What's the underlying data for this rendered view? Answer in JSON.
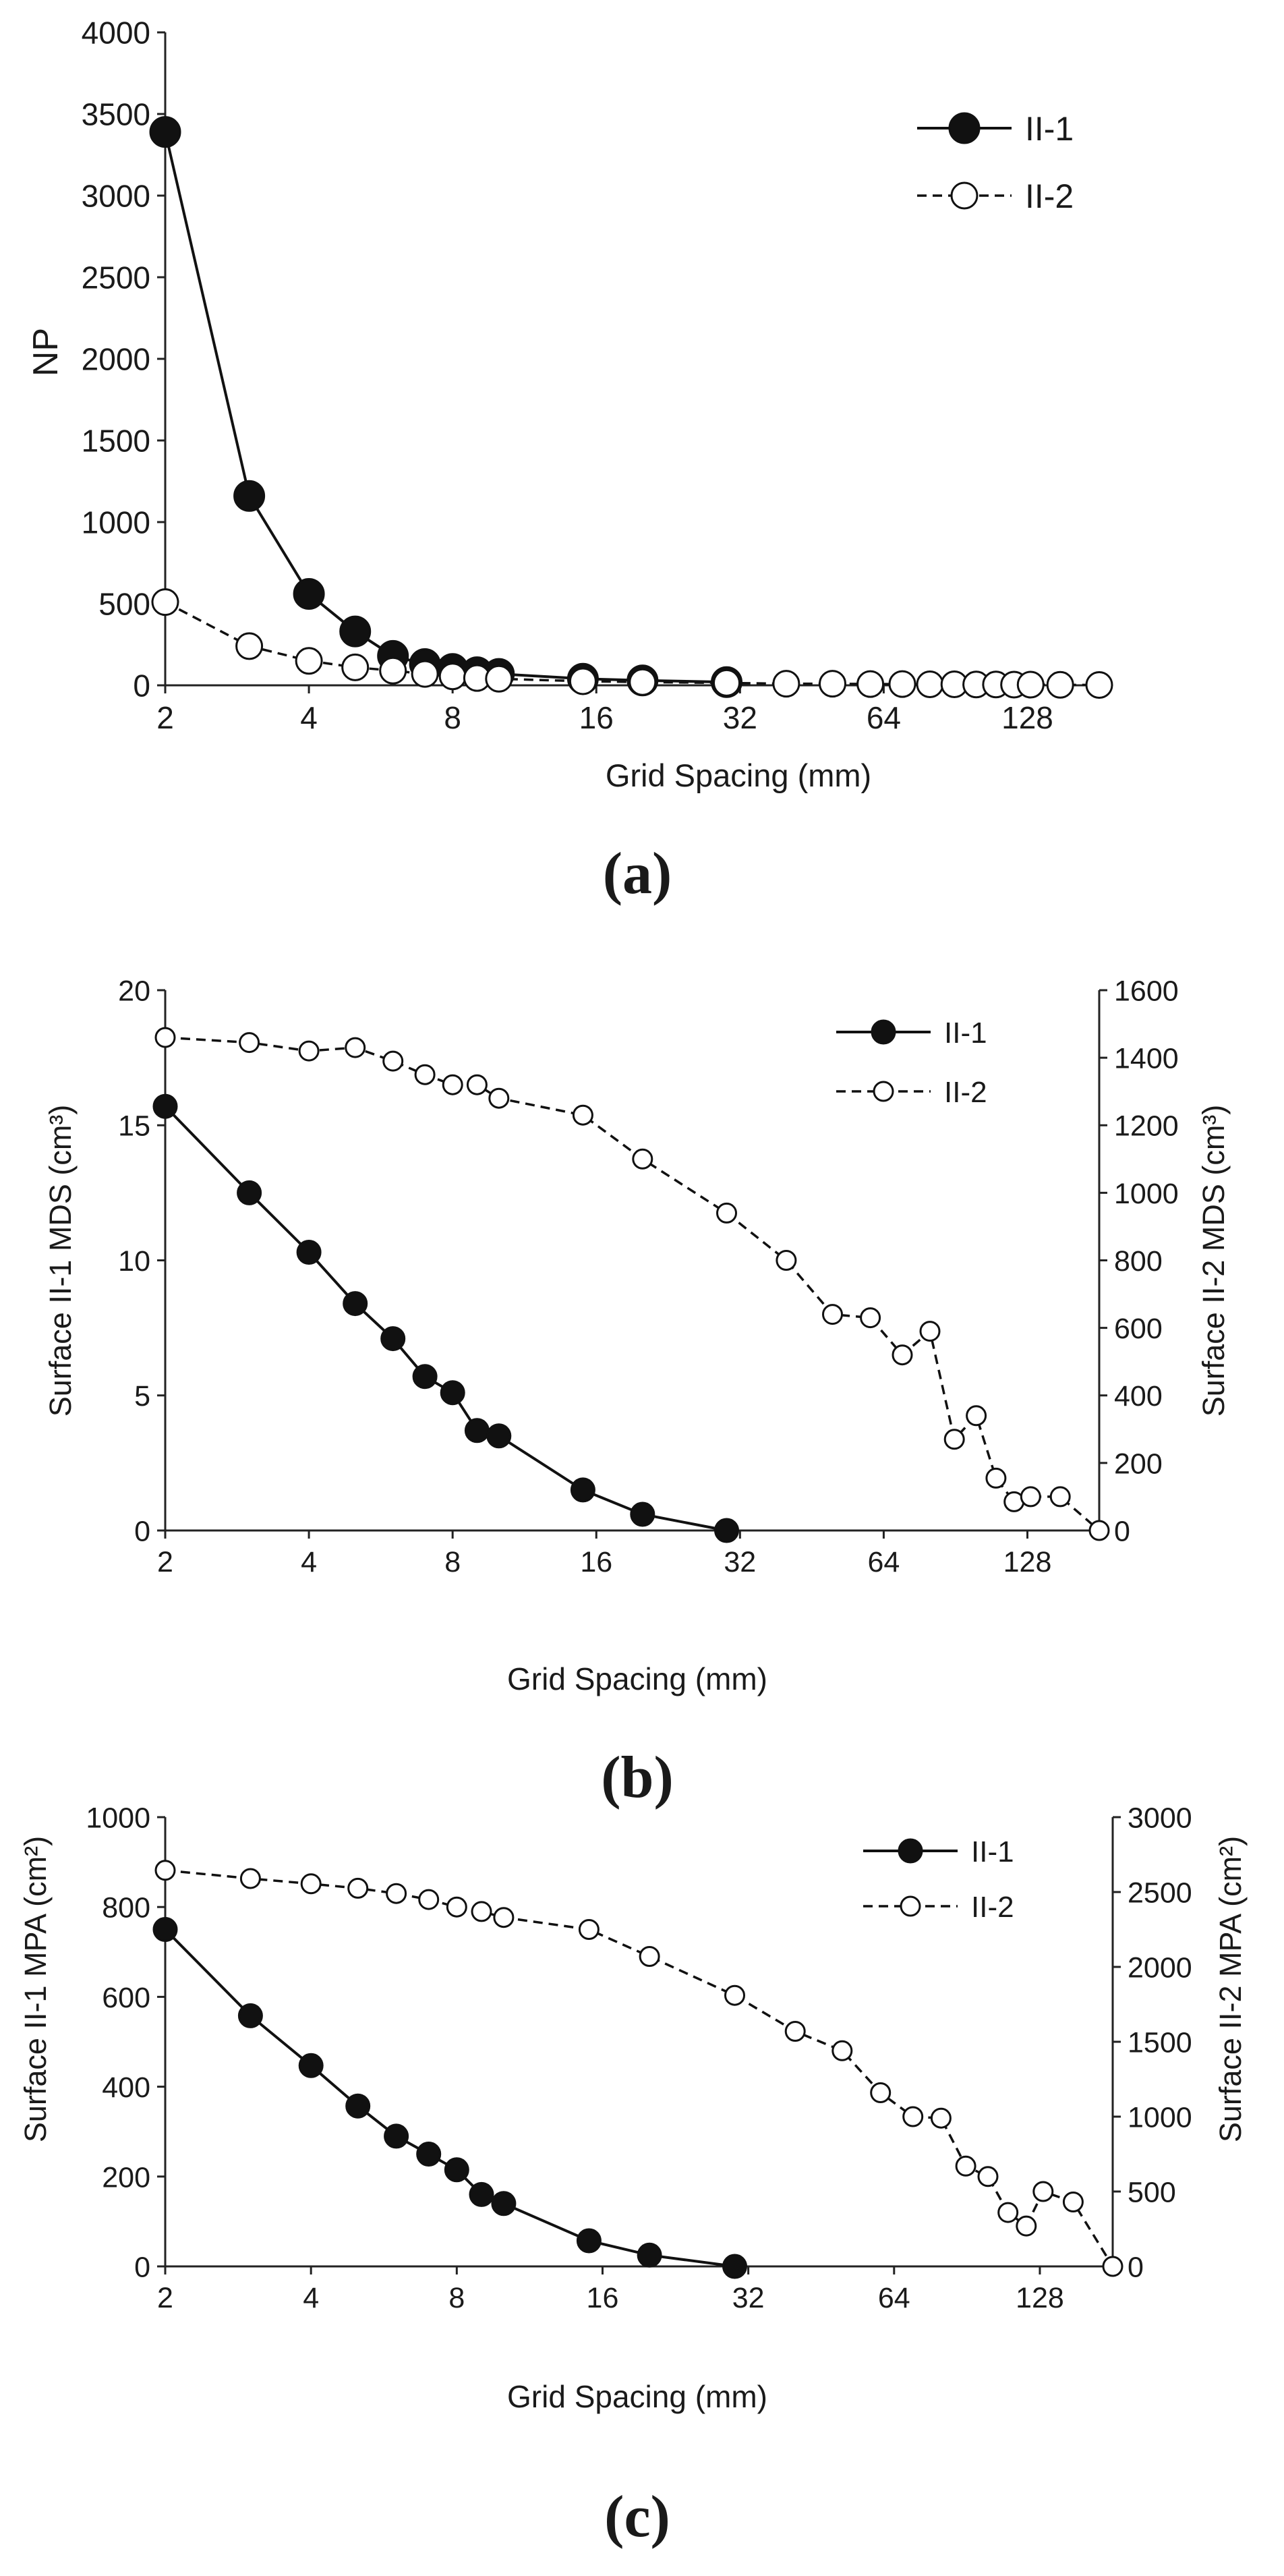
{
  "figure": {
    "panels": [
      "a",
      "b",
      "c"
    ]
  },
  "chart_data": [
    {
      "id": "a",
      "type": "line",
      "caption": "(a)",
      "title": "",
      "xlabel": "Grid Spacing (mm)",
      "ylabel": "NP",
      "xscale": "log2",
      "xlim": [
        2,
        181
      ],
      "ylim": [
        0,
        4000
      ],
      "xticks": [
        2,
        4,
        8,
        16,
        32,
        64,
        128
      ],
      "xtick_labels": [
        "2",
        "4",
        "8",
        "16",
        "32",
        "64",
        "128"
      ],
      "yticks": [
        0,
        500,
        1000,
        1500,
        2000,
        2500,
        3000,
        3500,
        4000
      ],
      "ytick_labels": [
        "0",
        "500",
        "1000",
        "1500",
        "2000",
        "2500",
        "3000",
        "3500",
        "4000"
      ],
      "legend": "top-right",
      "grid": false,
      "series": [
        {
          "name": "II-1",
          "style": "solid-filled",
          "x": [
            2,
            3,
            4,
            5,
            6,
            7,
            8,
            9,
            10,
            15,
            20,
            30
          ],
          "y": [
            3390,
            1160,
            560,
            330,
            180,
            130,
            100,
            80,
            70,
            40,
            30,
            20
          ]
        },
        {
          "name": "II-2",
          "style": "dashed-open",
          "x": [
            2,
            3,
            4,
            5,
            6,
            7,
            8,
            9,
            10,
            15,
            20,
            30,
            40,
            50,
            60,
            70,
            80,
            90,
            100,
            110,
            120,
            130,
            150,
            181
          ],
          "y": [
            510,
            240,
            150,
            110,
            90,
            70,
            55,
            45,
            40,
            25,
            20,
            15,
            10,
            10,
            8,
            8,
            6,
            6,
            5,
            5,
            4,
            4,
            3,
            2
          ]
        }
      ]
    },
    {
      "id": "b",
      "type": "line",
      "caption": "(b)",
      "title": "",
      "xlabel": "Grid Spacing (mm)",
      "ylabel": "Surface II-1 MDS (cm³)",
      "ylabel2": "Surface II-2 MDS (cm³)",
      "xscale": "log2",
      "xlim": [
        2,
        181
      ],
      "ylim": [
        0,
        20
      ],
      "ylim2": [
        0,
        1600
      ],
      "xticks": [
        2,
        4,
        8,
        16,
        32,
        64,
        128
      ],
      "xtick_labels": [
        "2",
        "4",
        "8",
        "16",
        "32",
        "64",
        "128"
      ],
      "yticks": [
        0,
        5,
        10,
        15,
        20
      ],
      "ytick_labels": [
        "0",
        "5",
        "10",
        "15",
        "20"
      ],
      "yticks2": [
        0,
        200,
        400,
        600,
        800,
        1000,
        1200,
        1400,
        1600
      ],
      "ytick_labels2": [
        "0",
        "200",
        "400",
        "600",
        "800",
        "1000",
        "1200",
        "1400",
        "1600"
      ],
      "legend": "top-right",
      "grid": false,
      "series": [
        {
          "name": "II-1",
          "axis": "left",
          "style": "solid-filled",
          "x": [
            2,
            3,
            4,
            5,
            6,
            7,
            8,
            9,
            10,
            15,
            20,
            30
          ],
          "y": [
            15.7,
            12.5,
            10.3,
            8.4,
            7.1,
            5.7,
            5.1,
            3.7,
            3.5,
            1.5,
            0.6,
            0.0
          ]
        },
        {
          "name": "II-2",
          "axis": "right",
          "style": "dashed-open",
          "x": [
            2,
            3,
            4,
            5,
            6,
            7,
            8,
            9,
            10,
            15,
            20,
            30,
            40,
            50,
            60,
            70,
            80,
            90,
            100,
            110,
            120,
            130,
            150,
            181
          ],
          "y": [
            1460,
            1445,
            1420,
            1430,
            1390,
            1350,
            1320,
            1320,
            1280,
            1230,
            1100,
            940,
            800,
            640,
            630,
            520,
            590,
            270,
            340,
            155,
            85,
            100,
            100,
            0
          ]
        }
      ]
    },
    {
      "id": "c",
      "type": "line",
      "caption": "(c)",
      "title": "",
      "xlabel": "Grid Spacing (mm)",
      "ylabel": "Surface II-1 MPA (cm²)",
      "ylabel2": "Surface II-2 MPA (cm²)",
      "xscale": "log2",
      "xlim": [
        2,
        181
      ],
      "ylim": [
        0,
        1000
      ],
      "ylim2": [
        0,
        3000
      ],
      "xticks": [
        2,
        4,
        8,
        16,
        32,
        64,
        128
      ],
      "xtick_labels": [
        "2",
        "4",
        "8",
        "16",
        "32",
        "64",
        "128"
      ],
      "yticks": [
        0,
        200,
        400,
        600,
        800,
        1000
      ],
      "ytick_labels": [
        "0",
        "200",
        "400",
        "600",
        "800",
        "1000"
      ],
      "yticks2": [
        0,
        500,
        1000,
        1500,
        2000,
        2500,
        3000
      ],
      "ytick_labels2": [
        "0",
        "500",
        "1000",
        "1500",
        "2000",
        "2500",
        "3000"
      ],
      "legend": "top-right",
      "grid": false,
      "series": [
        {
          "name": "II-1",
          "axis": "left",
          "style": "solid-filled",
          "x": [
            2,
            3,
            4,
            5,
            6,
            7,
            8,
            9,
            10,
            15,
            20,
            30
          ],
          "y": [
            750,
            558,
            447,
            357,
            290,
            250,
            215,
            160,
            140,
            57,
            25,
            0
          ]
        },
        {
          "name": "II-2",
          "axis": "right",
          "style": "dashed-open",
          "x": [
            2,
            3,
            4,
            5,
            6,
            7,
            8,
            9,
            10,
            15,
            20,
            30,
            40,
            50,
            60,
            70,
            80,
            90,
            100,
            110,
            120,
            130,
            150,
            181
          ],
          "y": [
            2645,
            2590,
            2555,
            2525,
            2490,
            2450,
            2400,
            2370,
            2330,
            2250,
            2070,
            1810,
            1570,
            1440,
            1160,
            1000,
            990,
            670,
            600,
            360,
            270,
            500,
            430,
            0
          ]
        }
      ]
    }
  ]
}
